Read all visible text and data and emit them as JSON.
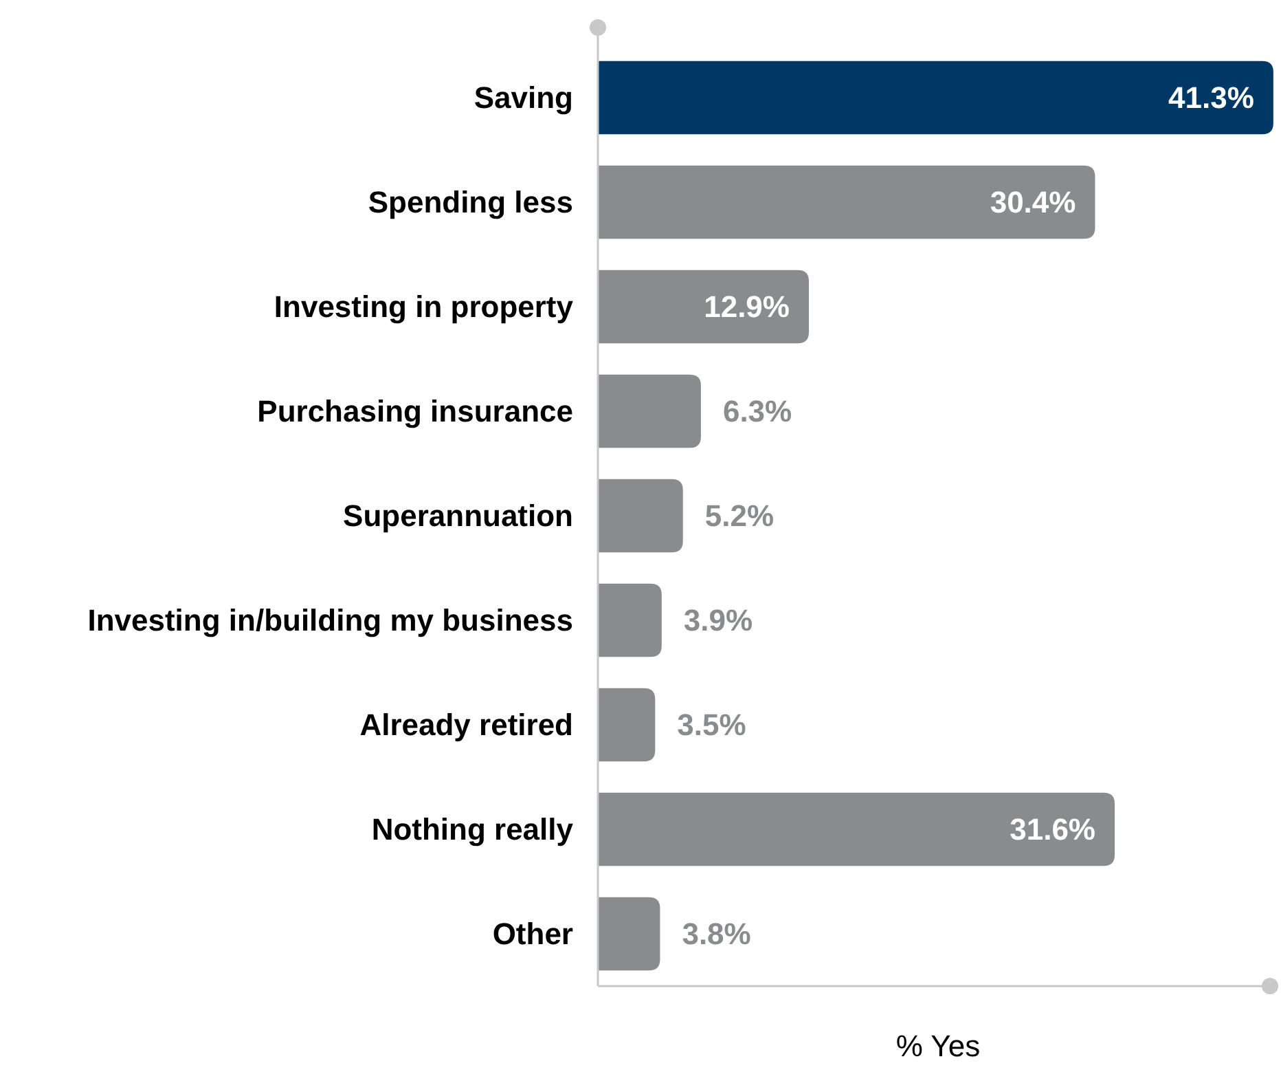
{
  "chart_data": {
    "type": "bar",
    "orientation": "horizontal",
    "xlabel": "% Yes",
    "categories": [
      "Saving",
      "Spending less",
      "Investing in property",
      "Purchasing insurance",
      "Superannuation",
      "Investing in/building my business",
      "Already retired",
      "Nothing really",
      "Other"
    ],
    "values": [
      41.3,
      30.4,
      12.9,
      6.3,
      5.2,
      3.9,
      3.5,
      31.6,
      3.8
    ],
    "colors": [
      "#003865",
      "#898b8c",
      "#898b8c",
      "#898b8c",
      "#898b8c",
      "#898b8c",
      "#898b8c",
      "#898b8c",
      "#898b8c"
    ],
    "value_labels": [
      "41.3%",
      "30.4%",
      "12.9%",
      "6.3%",
      "5.2%",
      "3.9%",
      "3.5%",
      "31.6%",
      "3.8%"
    ],
    "xlim": [
      0,
      41.6
    ],
    "tick_labels": "y"
  }
}
